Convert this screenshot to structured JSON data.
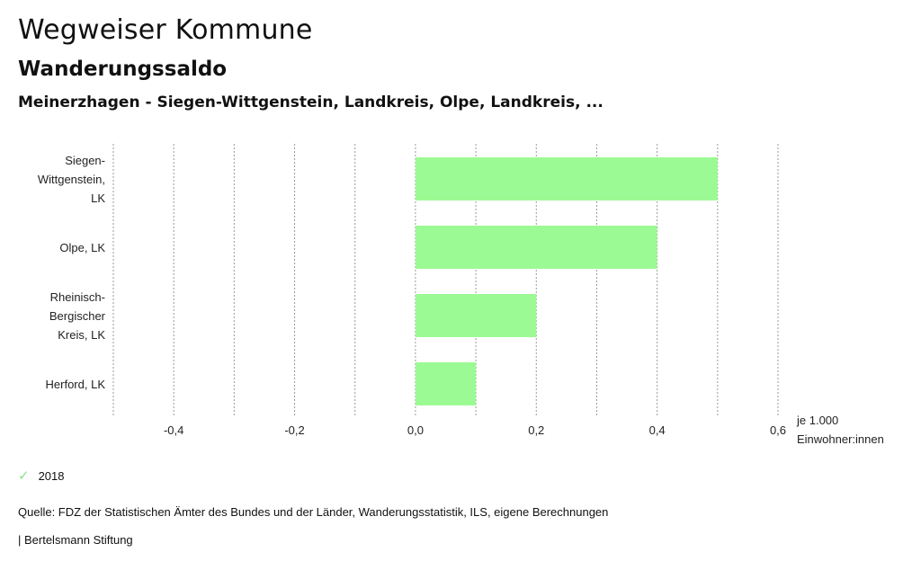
{
  "header": {
    "title": "Wegweiser Kommune",
    "subtitle": "Wanderungssaldo",
    "context": "Meinerzhagen - Siegen-Wittgenstein, Landkreis, Olpe, Landkreis, ..."
  },
  "chart_data": {
    "type": "bar",
    "orientation": "horizontal",
    "categories": [
      "Siegen-Wittgenstein, LK",
      "Olpe, LK",
      "Rheinisch-Bergischer Kreis, LK",
      "Herford, LK"
    ],
    "category_lines": [
      [
        "Siegen-",
        "Wittgenstein,",
        "LK"
      ],
      [
        "Olpe, LK"
      ],
      [
        "Rheinisch-",
        "Bergischer",
        "Kreis, LK"
      ],
      [
        "Herford, LK"
      ]
    ],
    "series": [
      {
        "name": "2018",
        "values": [
          0.5,
          0.4,
          0.2,
          0.1
        ]
      }
    ],
    "xlim": [
      -0.5,
      0.6
    ],
    "xticks": [
      -0.4,
      -0.2,
      0.0,
      0.2,
      0.4,
      0.6
    ],
    "xtick_labels": [
      "-0,4",
      "-0,2",
      "0,0",
      "0,2",
      "0,4",
      "0,6"
    ],
    "unit_lines": [
      "je 1.000",
      "Einwohner:innen"
    ],
    "grid": true,
    "bar_color": "#9cfa94",
    "legend_position": "bottom-left"
  },
  "legend": {
    "label": "2018",
    "icon": "check-icon",
    "color": "#8ee08a"
  },
  "footer": {
    "source": "Quelle: FDZ der Statistischen Ämter des Bundes und der Länder, Wanderungsstatistik, ILS, eigene Berechnungen",
    "publisher": "| Bertelsmann Stiftung"
  }
}
